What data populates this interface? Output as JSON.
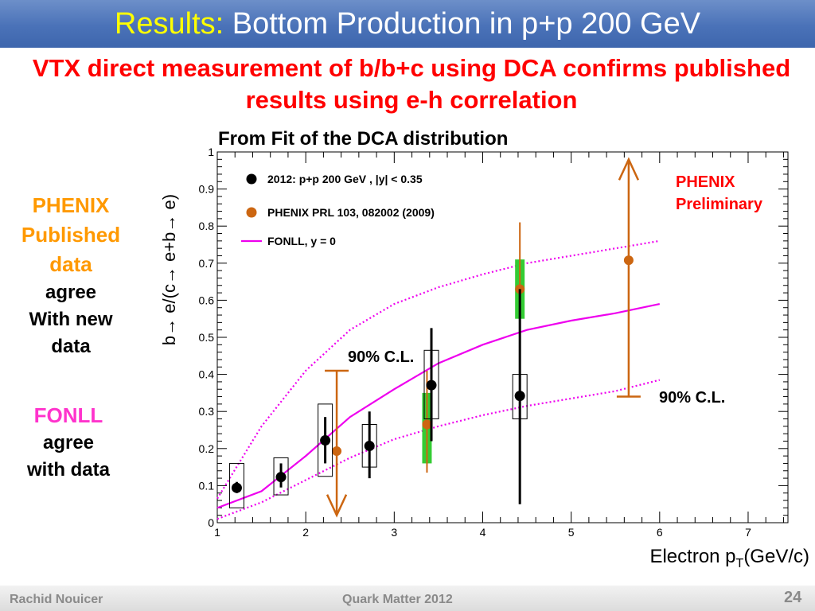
{
  "slide": {
    "title_prefix": "Results:",
    "title_rest": " Bottom Production in p+p 200 GeV",
    "subtitle": "VTX direct measurement of b/b+c using DCA confirms published results using e-h correlation",
    "side_phenix": [
      "PHENIX",
      "Published",
      "data"
    ],
    "side_phenix_black": [
      "agree",
      "With new",
      "data"
    ],
    "side_fonll": "FONLL",
    "side_fonll_black": [
      "agree",
      "with data"
    ],
    "footer_author": "Rachid Nouicer",
    "footer_conference": "Quark Matter 2012",
    "page_number": "24"
  },
  "chart_data": {
    "type": "scatter",
    "title": "From Fit of the DCA distribution",
    "xlabel_main": "Electron p",
    "xlabel_sub": "T",
    "xlabel_unit": "(GeV/c)",
    "ylabel": "b→ e/(c→ e+b→ e)",
    "xlim": [
      1,
      7.45
    ],
    "ylim": [
      0,
      1
    ],
    "xticks": [
      1,
      2,
      3,
      4,
      5,
      6,
      7
    ],
    "yticks": [
      0,
      0.1,
      0.2,
      0.3,
      0.4,
      0.5,
      0.6,
      0.7,
      0.8,
      0.9,
      1
    ],
    "ytick_labels": [
      "0",
      "0.1",
      "0.2",
      "0.3",
      "0.4",
      "0.5",
      "0.6",
      "0.7",
      "0.8",
      "0.9",
      "1"
    ],
    "colors": {
      "vtx": "#000000",
      "prl": "#cc6611",
      "prl_syst": "#33cc33",
      "fonll": "#ee00ee",
      "preliminary": "#ff0000"
    },
    "legend": [
      {
        "label": "2012: p+p 200 GeV  , |y| < 0.35",
        "marker": "dot",
        "color": "#000000"
      },
      {
        "label": "PHENIX PRL 103, 082002 (2009)",
        "marker": "dot",
        "color": "#cc6611"
      },
      {
        "label": "FONLL, y = 0",
        "marker": "line",
        "color": "#ee00ee"
      }
    ],
    "series": [
      {
        "name": "2012: p+p 200 GeV  , |y| < 0.35",
        "points": [
          {
            "x": 1.22,
            "y": 0.094,
            "stat": [
              0.08,
              0.11
            ],
            "sys": [
              0.04,
              0.16
            ]
          },
          {
            "x": 1.72,
            "y": 0.123,
            "stat": [
              0.095,
              0.16
            ],
            "sys": [
              0.075,
              0.175
            ]
          },
          {
            "x": 2.22,
            "y": 0.222,
            "stat": [
              0.16,
              0.285
            ],
            "sys": [
              0.125,
              0.32
            ]
          },
          {
            "x": 2.72,
            "y": 0.207,
            "stat": [
              0.12,
              0.3
            ],
            "sys": [
              0.15,
              0.265
            ]
          },
          {
            "x": 3.42,
            "y": 0.371,
            "stat": [
              0.22,
              0.525
            ],
            "sys": [
              0.28,
              0.465
            ]
          },
          {
            "x": 4.42,
            "y": 0.342,
            "stat": [
              0.05,
              0.63
            ],
            "sys": [
              0.28,
              0.4
            ]
          }
        ]
      },
      {
        "name": "PHENIX PRL 103, 082002 (2009)",
        "points": [
          {
            "x": 2.35,
            "y": 0.193,
            "upper_limit": 0.41,
            "lower_arrow_to": 0.02
          },
          {
            "x": 3.37,
            "y": 0.265,
            "err": [
              0.135,
              0.41
            ],
            "sys": [
              0.16,
              0.35
            ]
          },
          {
            "x": 4.42,
            "y": 0.63,
            "err": [
              0.42,
              0.81
            ],
            "sys": [
              0.55,
              0.71
            ]
          },
          {
            "x": 5.65,
            "y": 0.708,
            "limit_low": 0.34,
            "upper_arrow_to": 0.98
          }
        ]
      },
      {
        "name": "FONLL, y = 0",
        "points": [
          {
            "x": 1.0,
            "y": 0.04
          },
          {
            "x": 1.5,
            "y": 0.085
          },
          {
            "x": 2.0,
            "y": 0.18
          },
          {
            "x": 2.5,
            "y": 0.285
          },
          {
            "x": 3.0,
            "y": 0.36
          },
          {
            "x": 3.5,
            "y": 0.43
          },
          {
            "x": 4.0,
            "y": 0.48
          },
          {
            "x": 4.5,
            "y": 0.52
          },
          {
            "x": 5.0,
            "y": 0.545
          },
          {
            "x": 5.5,
            "y": 0.565
          },
          {
            "x": 6.0,
            "y": 0.59
          }
        ]
      },
      {
        "name": "FONLL upper",
        "points": [
          {
            "x": 1.0,
            "y": 0.065
          },
          {
            "x": 1.5,
            "y": 0.26
          },
          {
            "x": 2.0,
            "y": 0.41
          },
          {
            "x": 2.5,
            "y": 0.52
          },
          {
            "x": 3.0,
            "y": 0.59
          },
          {
            "x": 3.5,
            "y": 0.635
          },
          {
            "x": 4.0,
            "y": 0.67
          },
          {
            "x": 4.5,
            "y": 0.7
          },
          {
            "x": 5.0,
            "y": 0.72
          },
          {
            "x": 5.5,
            "y": 0.74
          },
          {
            "x": 6.0,
            "y": 0.76
          }
        ]
      },
      {
        "name": "FONLL lower",
        "points": [
          {
            "x": 1.0,
            "y": 0.01
          },
          {
            "x": 1.5,
            "y": 0.055
          },
          {
            "x": 2.0,
            "y": 0.115
          },
          {
            "x": 2.5,
            "y": 0.175
          },
          {
            "x": 3.0,
            "y": 0.225
          },
          {
            "x": 3.5,
            "y": 0.26
          },
          {
            "x": 4.0,
            "y": 0.29
          },
          {
            "x": 4.5,
            "y": 0.315
          },
          {
            "x": 5.0,
            "y": 0.335
          },
          {
            "x": 5.5,
            "y": 0.355
          },
          {
            "x": 6.0,
            "y": 0.385
          }
        ]
      }
    ],
    "annotations": {
      "preliminary_line1": "PHENIX",
      "preliminary_line2": "Preliminary",
      "cl_left": "90% C.L.",
      "cl_right": "90% C.L."
    }
  }
}
